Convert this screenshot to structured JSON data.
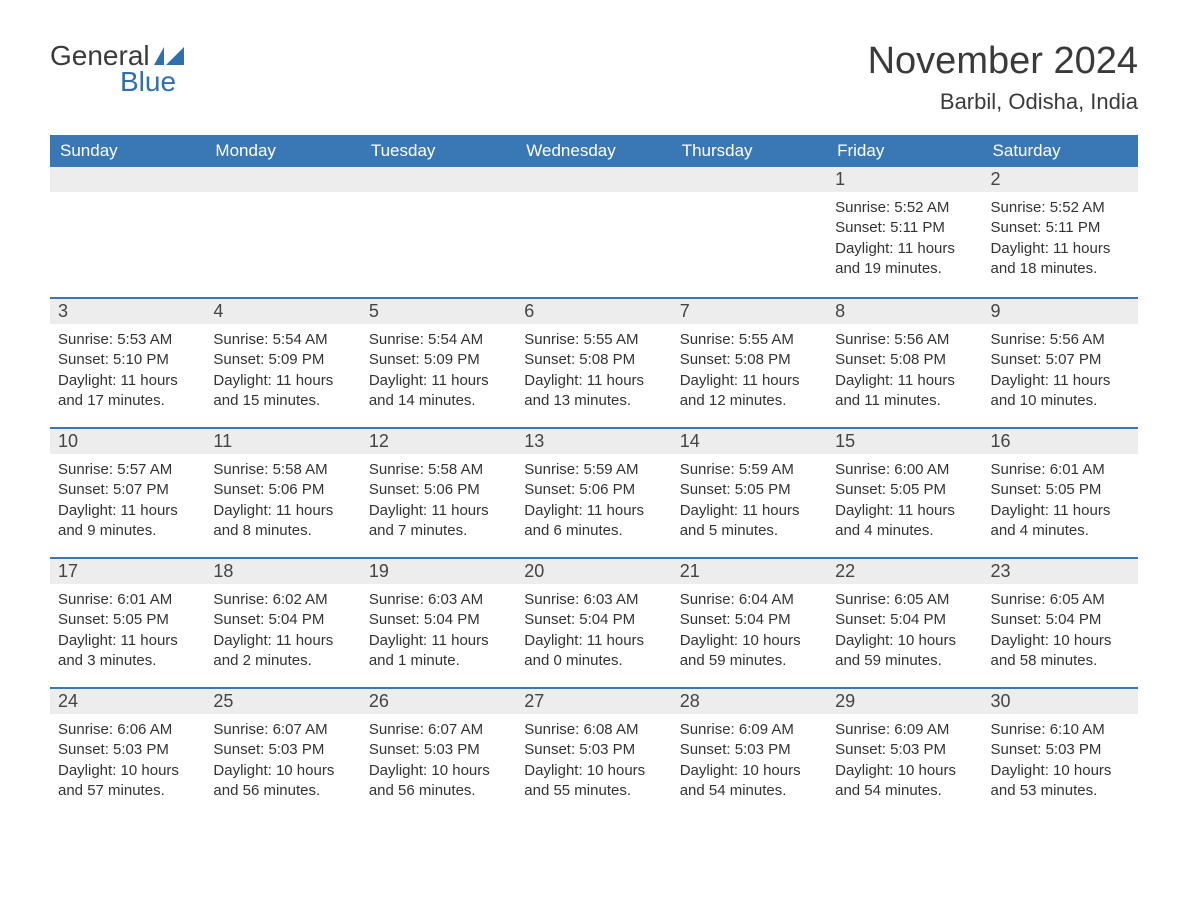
{
  "logo": {
    "line1": "General",
    "line2": "Blue",
    "icon_color": "#2f6fb0"
  },
  "title": "November 2024",
  "location": "Barbil, Odisha, India",
  "colors": {
    "header_bg": "#3a78b5",
    "header_text": "#ffffff",
    "row_accent": "#3a78b5",
    "daybar_bg": "#ededed",
    "body_text": "#333333",
    "background": "#ffffff"
  },
  "layout": {
    "columns": 7,
    "rows": 5
  },
  "day_headers": [
    "Sunday",
    "Monday",
    "Tuesday",
    "Wednesday",
    "Thursday",
    "Friday",
    "Saturday"
  ],
  "weeks": [
    [
      null,
      null,
      null,
      null,
      null,
      {
        "num": "1",
        "sunrise": "5:52 AM",
        "sunset": "5:11 PM",
        "daylight": "11 hours and 19 minutes."
      },
      {
        "num": "2",
        "sunrise": "5:52 AM",
        "sunset": "5:11 PM",
        "daylight": "11 hours and 18 minutes."
      }
    ],
    [
      {
        "num": "3",
        "sunrise": "5:53 AM",
        "sunset": "5:10 PM",
        "daylight": "11 hours and 17 minutes."
      },
      {
        "num": "4",
        "sunrise": "5:54 AM",
        "sunset": "5:09 PM",
        "daylight": "11 hours and 15 minutes."
      },
      {
        "num": "5",
        "sunrise": "5:54 AM",
        "sunset": "5:09 PM",
        "daylight": "11 hours and 14 minutes."
      },
      {
        "num": "6",
        "sunrise": "5:55 AM",
        "sunset": "5:08 PM",
        "daylight": "11 hours and 13 minutes."
      },
      {
        "num": "7",
        "sunrise": "5:55 AM",
        "sunset": "5:08 PM",
        "daylight": "11 hours and 12 minutes."
      },
      {
        "num": "8",
        "sunrise": "5:56 AM",
        "sunset": "5:08 PM",
        "daylight": "11 hours and 11 minutes."
      },
      {
        "num": "9",
        "sunrise": "5:56 AM",
        "sunset": "5:07 PM",
        "daylight": "11 hours and 10 minutes."
      }
    ],
    [
      {
        "num": "10",
        "sunrise": "5:57 AM",
        "sunset": "5:07 PM",
        "daylight": "11 hours and 9 minutes."
      },
      {
        "num": "11",
        "sunrise": "5:58 AM",
        "sunset": "5:06 PM",
        "daylight": "11 hours and 8 minutes."
      },
      {
        "num": "12",
        "sunrise": "5:58 AM",
        "sunset": "5:06 PM",
        "daylight": "11 hours and 7 minutes."
      },
      {
        "num": "13",
        "sunrise": "5:59 AM",
        "sunset": "5:06 PM",
        "daylight": "11 hours and 6 minutes."
      },
      {
        "num": "14",
        "sunrise": "5:59 AM",
        "sunset": "5:05 PM",
        "daylight": "11 hours and 5 minutes."
      },
      {
        "num": "15",
        "sunrise": "6:00 AM",
        "sunset": "5:05 PM",
        "daylight": "11 hours and 4 minutes."
      },
      {
        "num": "16",
        "sunrise": "6:01 AM",
        "sunset": "5:05 PM",
        "daylight": "11 hours and 4 minutes."
      }
    ],
    [
      {
        "num": "17",
        "sunrise": "6:01 AM",
        "sunset": "5:05 PM",
        "daylight": "11 hours and 3 minutes."
      },
      {
        "num": "18",
        "sunrise": "6:02 AM",
        "sunset": "5:04 PM",
        "daylight": "11 hours and 2 minutes."
      },
      {
        "num": "19",
        "sunrise": "6:03 AM",
        "sunset": "5:04 PM",
        "daylight": "11 hours and 1 minute."
      },
      {
        "num": "20",
        "sunrise": "6:03 AM",
        "sunset": "5:04 PM",
        "daylight": "11 hours and 0 minutes."
      },
      {
        "num": "21",
        "sunrise": "6:04 AM",
        "sunset": "5:04 PM",
        "daylight": "10 hours and 59 minutes."
      },
      {
        "num": "22",
        "sunrise": "6:05 AM",
        "sunset": "5:04 PM",
        "daylight": "10 hours and 59 minutes."
      },
      {
        "num": "23",
        "sunrise": "6:05 AM",
        "sunset": "5:04 PM",
        "daylight": "10 hours and 58 minutes."
      }
    ],
    [
      {
        "num": "24",
        "sunrise": "6:06 AM",
        "sunset": "5:03 PM",
        "daylight": "10 hours and 57 minutes."
      },
      {
        "num": "25",
        "sunrise": "6:07 AM",
        "sunset": "5:03 PM",
        "daylight": "10 hours and 56 minutes."
      },
      {
        "num": "26",
        "sunrise": "6:07 AM",
        "sunset": "5:03 PM",
        "daylight": "10 hours and 56 minutes."
      },
      {
        "num": "27",
        "sunrise": "6:08 AM",
        "sunset": "5:03 PM",
        "daylight": "10 hours and 55 minutes."
      },
      {
        "num": "28",
        "sunrise": "6:09 AM",
        "sunset": "5:03 PM",
        "daylight": "10 hours and 54 minutes."
      },
      {
        "num": "29",
        "sunrise": "6:09 AM",
        "sunset": "5:03 PM",
        "daylight": "10 hours and 54 minutes."
      },
      {
        "num": "30",
        "sunrise": "6:10 AM",
        "sunset": "5:03 PM",
        "daylight": "10 hours and 53 minutes."
      }
    ]
  ],
  "labels": {
    "sunrise": "Sunrise:",
    "sunset": "Sunset:",
    "daylight": "Daylight:"
  }
}
